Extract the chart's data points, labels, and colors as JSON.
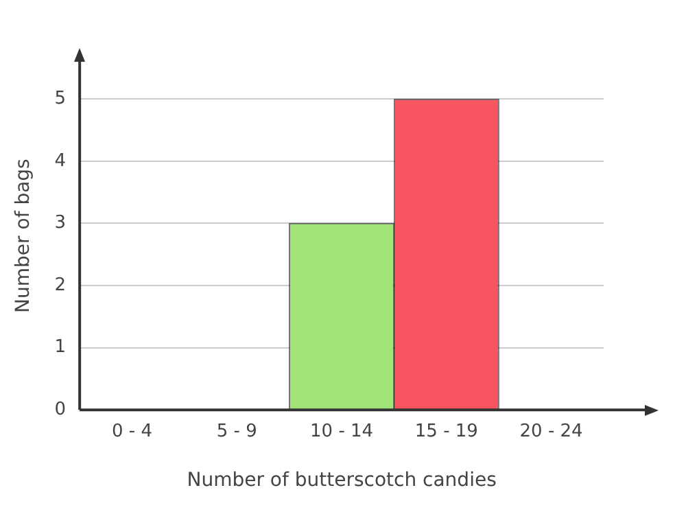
{
  "chart_data": {
    "type": "bar",
    "xlabel": "Number of butterscotch candies",
    "ylabel": "Number of bags",
    "categories": [
      "0 - 4",
      "5 - 9",
      "10 - 14",
      "15 - 19",
      "20 - 24"
    ],
    "values": [
      0,
      0,
      3,
      5,
      0
    ],
    "colors": [
      "#a3e47a",
      "#a3e47a",
      "#a3e47a",
      "#f7555f",
      "#f7555f"
    ],
    "ylim": [
      0,
      5.6
    ],
    "yticks": [
      0,
      1,
      2,
      3,
      4,
      5
    ],
    "grid": "y",
    "legend": false
  }
}
